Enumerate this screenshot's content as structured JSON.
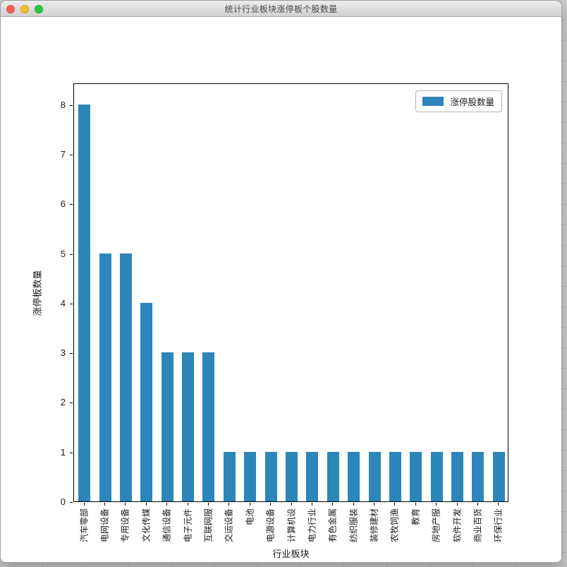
{
  "window": {
    "title": "统计行业板块涨停板个股数量",
    "controls": [
      {
        "name": "close",
        "color": "#ff5f57"
      },
      {
        "name": "minimize",
        "color": "#febc2e"
      },
      {
        "name": "zoom",
        "color": "#28c840"
      }
    ]
  },
  "chart_data": {
    "type": "bar",
    "categories": [
      "汽车零部",
      "电网设备",
      "专用设备",
      "文化传媒",
      "通信设备",
      "电子元件",
      "互联网服",
      "交运设备",
      "电池",
      "电源设备",
      "计算机设",
      "电力行业",
      "有色金属",
      "纺织服装",
      "装修建材",
      "农牧饲渔",
      "教育",
      "房地产服",
      "软件开发",
      "商业百货",
      "环保行业"
    ],
    "values": [
      8,
      5,
      5,
      4,
      3,
      3,
      3,
      1,
      1,
      1,
      1,
      1,
      1,
      1,
      1,
      1,
      1,
      1,
      1,
      1,
      1
    ],
    "title": "",
    "xlabel": "行业板块",
    "ylabel": "涨停板数量",
    "yticks": [
      0,
      1,
      2,
      3,
      4,
      5,
      6,
      7,
      8
    ],
    "ylim": [
      0,
      8.44
    ],
    "grid": false,
    "legend": {
      "label": "涨停股数量",
      "position": "upper right"
    },
    "bar_color": "#2d86b9",
    "axis_color": "#000000"
  }
}
